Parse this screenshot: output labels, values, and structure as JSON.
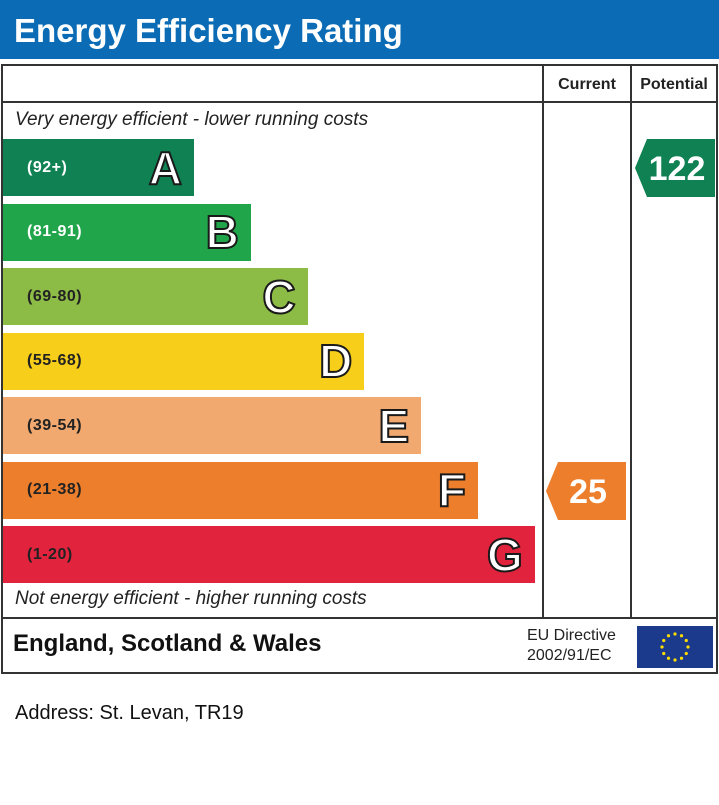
{
  "header": {
    "title": "Energy Efficiency Rating"
  },
  "columns": {
    "current": "Current",
    "potential": "Potential"
  },
  "notes": {
    "top": "Very energy efficient - lower running costs",
    "bottom": "Not energy efficient - higher running costs"
  },
  "footer": {
    "country": "England, Scotland & Wales",
    "directive_line1": "EU Directive",
    "directive_line2": "2002/91/EC",
    "flag_icon": "eu-flag-icon"
  },
  "address": "Address: St. Levan, TR19",
  "chart_data": {
    "type": "bar",
    "title": "Energy Efficiency Rating",
    "categories": [
      "A",
      "B",
      "C",
      "D",
      "E",
      "F",
      "G"
    ],
    "ranges": [
      "(92+)",
      "(81-91)",
      "(69-80)",
      "(55-68)",
      "(39-54)",
      "(21-38)",
      "(1-20)"
    ],
    "colors": [
      "#0f8153",
      "#21a54a",
      "#8dbc46",
      "#f7ce19",
      "#f1a96f",
      "#ec7e2c",
      "#e1233d"
    ],
    "range_text_colors": [
      "#ffffff",
      "#ffffff",
      "#222222",
      "#222222",
      "#222222",
      "#222222",
      "#222222"
    ],
    "current": {
      "value": 25,
      "band": "F",
      "color": "#ec7e2c"
    },
    "potential": {
      "value": 122,
      "band": "A",
      "color": "#0f8153"
    }
  }
}
